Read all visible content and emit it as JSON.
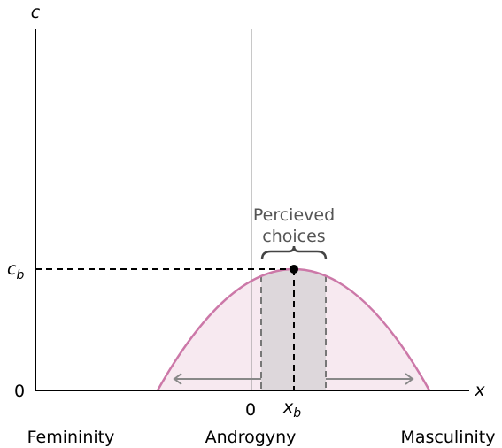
{
  "axes": {
    "y_label": "c",
    "x_label": "x",
    "origin": "0",
    "center_tick": "0",
    "y_marker": {
      "main": "c",
      "sub": "b"
    },
    "x_marker": {
      "main": "x",
      "sub": "b"
    }
  },
  "annotation": [
    "Percieved",
    "choices"
  ],
  "categories": [
    "Femininity",
    "Androgyny",
    "Masculinity"
  ]
}
